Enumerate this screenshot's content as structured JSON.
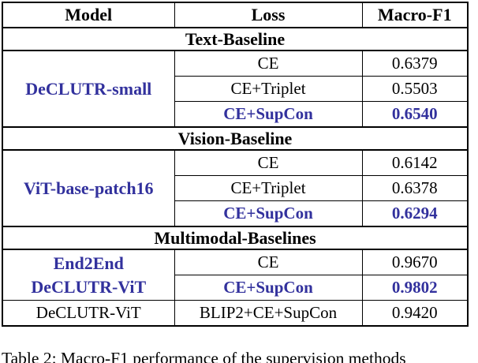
{
  "colors": {
    "accent_blue": "#32319D",
    "text_black": "#000000",
    "background": "#FFFFFF",
    "border": "#000000"
  },
  "table": {
    "headers": [
      "Model",
      "Loss",
      "Macro-F1"
    ],
    "sections": [
      {
        "title": "Text-Baseline",
        "model": {
          "label": "DeCLUTR-small",
          "highlight": true
        },
        "rows": [
          {
            "loss": "CE",
            "f1": "0.6379",
            "highlight": false
          },
          {
            "loss": "CE+Triplet",
            "f1": "0.5503",
            "highlight": false
          },
          {
            "loss": "CE+SupCon",
            "f1": "0.6540",
            "highlight": true
          }
        ]
      },
      {
        "title": "Vision-Baseline",
        "model": {
          "label": "ViT-base-patch16",
          "highlight": true
        },
        "rows": [
          {
            "loss": "CE",
            "f1": "0.6142",
            "highlight": false
          },
          {
            "loss": "CE+Triplet",
            "f1": "0.6378",
            "highlight": false
          },
          {
            "loss": "CE+SupCon",
            "f1": "0.6294",
            "highlight": true
          }
        ]
      },
      {
        "title": "Multimodal-Baselines",
        "groups": [
          {
            "model": {
              "label": "End2End DeCLUTR-ViT",
              "lines": [
                "End2End",
                "DeCLUTR-ViT"
              ],
              "highlight": true
            },
            "rows": [
              {
                "loss": "CE",
                "f1": "0.9670",
                "highlight": false
              },
              {
                "loss": "CE+SupCon",
                "f1": "0.9802",
                "highlight": true
              }
            ]
          },
          {
            "model": {
              "label": "DeCLUTR-ViT",
              "highlight": false
            },
            "rows": [
              {
                "loss": "BLIP2+CE+SupCon",
                "f1": "0.9420",
                "highlight": false
              }
            ]
          }
        ]
      }
    ]
  },
  "caption": {
    "text": "Table 2: Macro-F1 performance of the supervision methods"
  }
}
